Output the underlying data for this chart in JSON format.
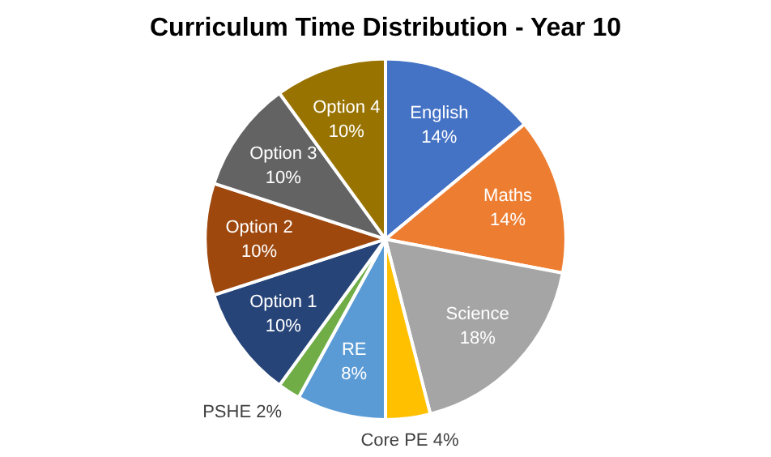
{
  "chart_data": {
    "type": "pie",
    "title": "Curriculum Time Distribution - Year 10",
    "categories": [
      "English",
      "Maths",
      "Science",
      "Core PE",
      "RE",
      "PSHE",
      "Option 1",
      "Option 2",
      "Option 3",
      "Option 4"
    ],
    "values": [
      14,
      14,
      18,
      4,
      8,
      2,
      10,
      10,
      10,
      10
    ],
    "value_labels": [
      "14%",
      "14%",
      "18%",
      "4%",
      "8%",
      "2%",
      "10%",
      "10%",
      "10%",
      "10%"
    ],
    "colors": [
      "#4472c4",
      "#ed7d31",
      "#a5a5a5",
      "#ffc000",
      "#5b9bd5",
      "#70ad47",
      "#264478",
      "#9e480e",
      "#636363",
      "#997300"
    ],
    "legend": false
  }
}
